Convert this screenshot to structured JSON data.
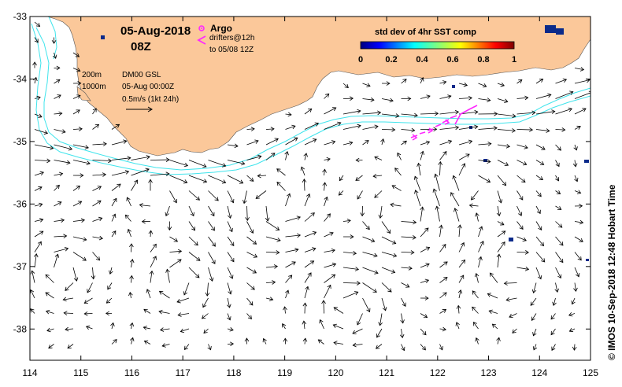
{
  "header": {
    "date": "05-Aug-2018",
    "time": "08Z",
    "argo_label": "Argo",
    "drifter_label_1": "drifters@12h",
    "drifter_label_2": "to 05/08 12Z"
  },
  "legend": {
    "depth_200": "200m",
    "depth_1000": "1000m",
    "model": "DM00 GSL",
    "model_time": "05-Aug 00:00Z",
    "scale": "0.5m/s (1kt 24h)"
  },
  "colorbar": {
    "title": "std dev of 4hr SST comp",
    "ticks": [
      "0",
      "0.2",
      "0.4",
      "0.6",
      "0.8",
      "1"
    ],
    "min": 0,
    "max": 1
  },
  "credit": "© IMOS 10-Sep-2018 12:48 Hobart Time",
  "axes": {
    "lon_labels": [
      "114",
      "115",
      "116",
      "117",
      "118",
      "119",
      "120",
      "121",
      "122",
      "123",
      "124",
      "125"
    ],
    "lat_labels": [
      "-33",
      "-34",
      "-35",
      "-36",
      "-37",
      "-38"
    ],
    "lon_range": [
      114,
      125
    ],
    "lat_range": [
      -38.5,
      -33
    ]
  },
  "colors": {
    "land": "#fbc89a",
    "isobath": "#3fe4ec",
    "drifter": "#ff28ff",
    "argo": "#ff28ff",
    "arrow": "#000000",
    "sst_patch": "#0a2a8a"
  }
}
